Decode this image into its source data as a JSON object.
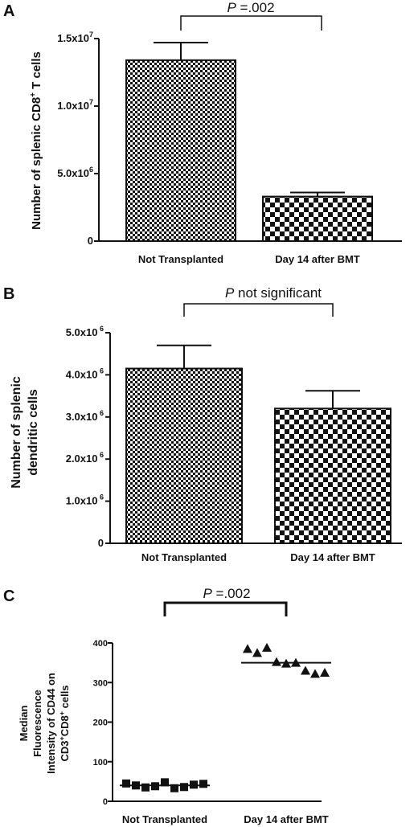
{
  "panels": {
    "a": {
      "letter": "A",
      "ylabel_main": "Number of splenic CD8",
      "ylabel_sup": "+",
      "ylabel_end": " T cells",
      "p_prefix": "P",
      "p_value": " =.002",
      "ticks": [
        {
          "value": 0,
          "base": "0",
          "exp": ""
        },
        {
          "value": 5000000,
          "base": "5.0x10",
          "exp": "6"
        },
        {
          "value": 10000000,
          "base": "1.0x10",
          "exp": "7"
        },
        {
          "value": 15000000,
          "base": "1.5x10",
          "exp": "7"
        }
      ]
    },
    "b": {
      "letter": "B",
      "ylabel_line1": "Number of splenic",
      "ylabel_line2": "dendritic cells",
      "p_prefix": "P",
      "p_value": " not significant",
      "ticks": [
        {
          "value": 0,
          "base": "0",
          "exp": ""
        },
        {
          "value": 1000000,
          "base": "1.0x10",
          "exp": " 6"
        },
        {
          "value": 2000000,
          "base": "2.0x10",
          "exp": " 6"
        },
        {
          "value": 3000000,
          "base": "3.0x10",
          "exp": " 6"
        },
        {
          "value": 4000000,
          "base": "4.0x10",
          "exp": " 6"
        },
        {
          "value": 5000000,
          "base": "5.0x10",
          "exp": " 6"
        }
      ]
    },
    "c": {
      "letter": "C",
      "ylabel_line1": "Median",
      "ylabel_line2": "Fluorescence",
      "ylabel_line3": "Intensity of CD44 on",
      "ylabel_line4_cd3": "CD3",
      "ylabel_line4_sup1": "+",
      "ylabel_line4_cd8": "CD8",
      "ylabel_line4_sup2": "+",
      "ylabel_line4_end": " cells",
      "p_prefix": "P",
      "p_value": " =.002",
      "ticks": [
        {
          "value": 0,
          "label": "0"
        },
        {
          "value": 100,
          "label": "100"
        },
        {
          "value": 200,
          "label": "200"
        },
        {
          "value": 300,
          "label": "300"
        },
        {
          "value": 400,
          "label": "400"
        }
      ]
    }
  },
  "chart_data": [
    {
      "type": "bar",
      "panel": "A",
      "categories": [
        "Not Transplanted",
        "Day 14 after BMT"
      ],
      "values": [
        13400000,
        3300000
      ],
      "error": [
        1300000,
        300000
      ],
      "ylim": [
        0,
        15000000
      ],
      "ylabel": "Number of splenic CD8+ T cells",
      "annotation": "P =.002",
      "fill_patterns": [
        "fine-checker",
        "coarse-checker"
      ]
    },
    {
      "type": "bar",
      "panel": "B",
      "categories": [
        "Not Transplanted",
        "Day 14 after BMT"
      ],
      "values": [
        4150000,
        3200000
      ],
      "error": [
        550000,
        420000
      ],
      "ylim": [
        0,
        5000000
      ],
      "ylabel": "Number of splenic dendritic cells",
      "annotation": "P not significant",
      "fill_patterns": [
        "fine-checker",
        "coarse-checker"
      ]
    },
    {
      "type": "scatter",
      "panel": "C",
      "categories": [
        "Not Transplanted",
        "Day 14 after BMT"
      ],
      "series": [
        {
          "category": "Not Transplanted",
          "marker": "square",
          "values": [
            45,
            40,
            35,
            38,
            48,
            33,
            36,
            42,
            44
          ],
          "median": 40
        },
        {
          "category": "Day 14 after BMT",
          "marker": "triangle",
          "values": [
            385,
            375,
            388,
            352,
            348,
            350,
            330,
            322,
            325
          ],
          "median": 350
        }
      ],
      "ylim": [
        0,
        400
      ],
      "ylabel": "Median Fluorescence Intensity of CD44 on CD3+CD8+ cells",
      "annotation": "P =.002"
    }
  ]
}
